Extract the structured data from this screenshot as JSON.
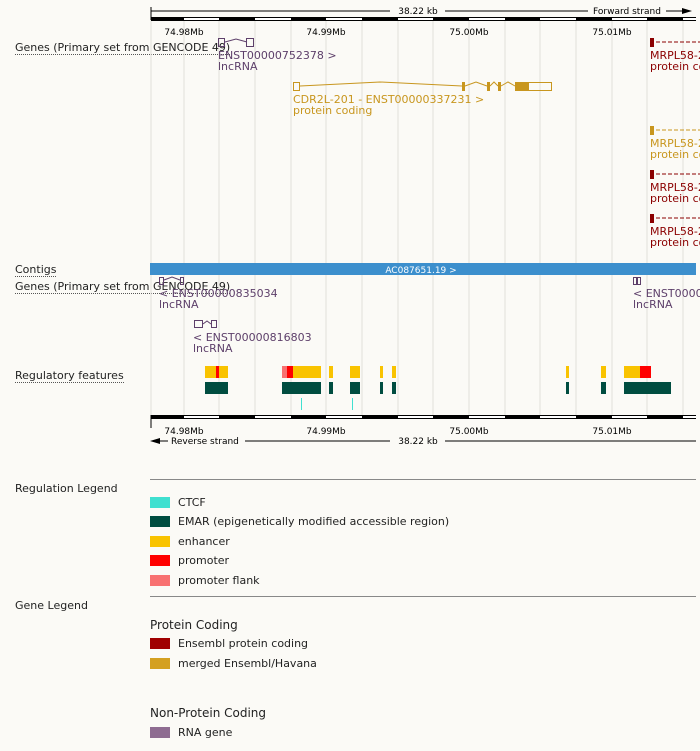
{
  "scale": {
    "span_label": "38.22 kb",
    "forward_strand": "Forward strand",
    "reverse_strand": "Reverse strand",
    "ticks": [
      "74.98Mb",
      "74.99Mb",
      "75.00Mb",
      "75.01Mb"
    ]
  },
  "tracks": {
    "genes_forward": "Genes (Primary set from GENCODE 49)",
    "contigs": "Contigs",
    "genes_reverse": "Genes (Primary set from GENCODE 49)",
    "regulatory": "Regulatory features"
  },
  "genes_forward": [
    {
      "id": "ENST00000752378 >",
      "type": "lncRNA",
      "color": "#5d3f6a"
    },
    {
      "id": "CDR2L-201 - ENST00000337231 >",
      "type": "protein coding",
      "color": "#c8961e"
    },
    {
      "id": "MRPL58-2",
      "type": "protein co",
      "color": "#8b0000"
    },
    {
      "id": "MRPL58-2",
      "type": "protein co",
      "color": "#c8961e"
    },
    {
      "id": "MRPL58-2",
      "type": "protein co",
      "color": "#8b0000"
    },
    {
      "id": "MRPL58-2",
      "type": "protein co",
      "color": "#8b0000"
    }
  ],
  "contig": {
    "label": "AC087651.19 >",
    "color": "#3c8fcd"
  },
  "genes_reverse": [
    {
      "id": "< ENST00000835034",
      "type": "lncRNA"
    },
    {
      "id": "< ENST00000816803",
      "type": "lncRNA"
    },
    {
      "id": "< ENST0000",
      "type": "lncRNA"
    }
  ],
  "regulation_legend": {
    "title": "Regulation Legend",
    "items": [
      {
        "label": "CTCF",
        "color": "#40e0d0"
      },
      {
        "label": "EMAR (epigenetically modified accessible region)",
        "color": "#004d40"
      },
      {
        "label": "enhancer",
        "color": "#f9c300"
      },
      {
        "label": "promoter",
        "color": "#ff0000"
      },
      {
        "label": "promoter flank",
        "color": "#f87171"
      }
    ]
  },
  "gene_legend": {
    "title": "Gene Legend",
    "protein_coding_title": "Protein Coding",
    "protein_coding": [
      {
        "label": "Ensembl protein coding",
        "color": "#a00000"
      },
      {
        "label": "merged Ensembl/Havana",
        "color": "#d4a020"
      }
    ],
    "non_protein_title": "Non-Protein Coding",
    "non_protein": [
      {
        "label": "RNA gene",
        "color": "#8e6c91"
      }
    ]
  }
}
